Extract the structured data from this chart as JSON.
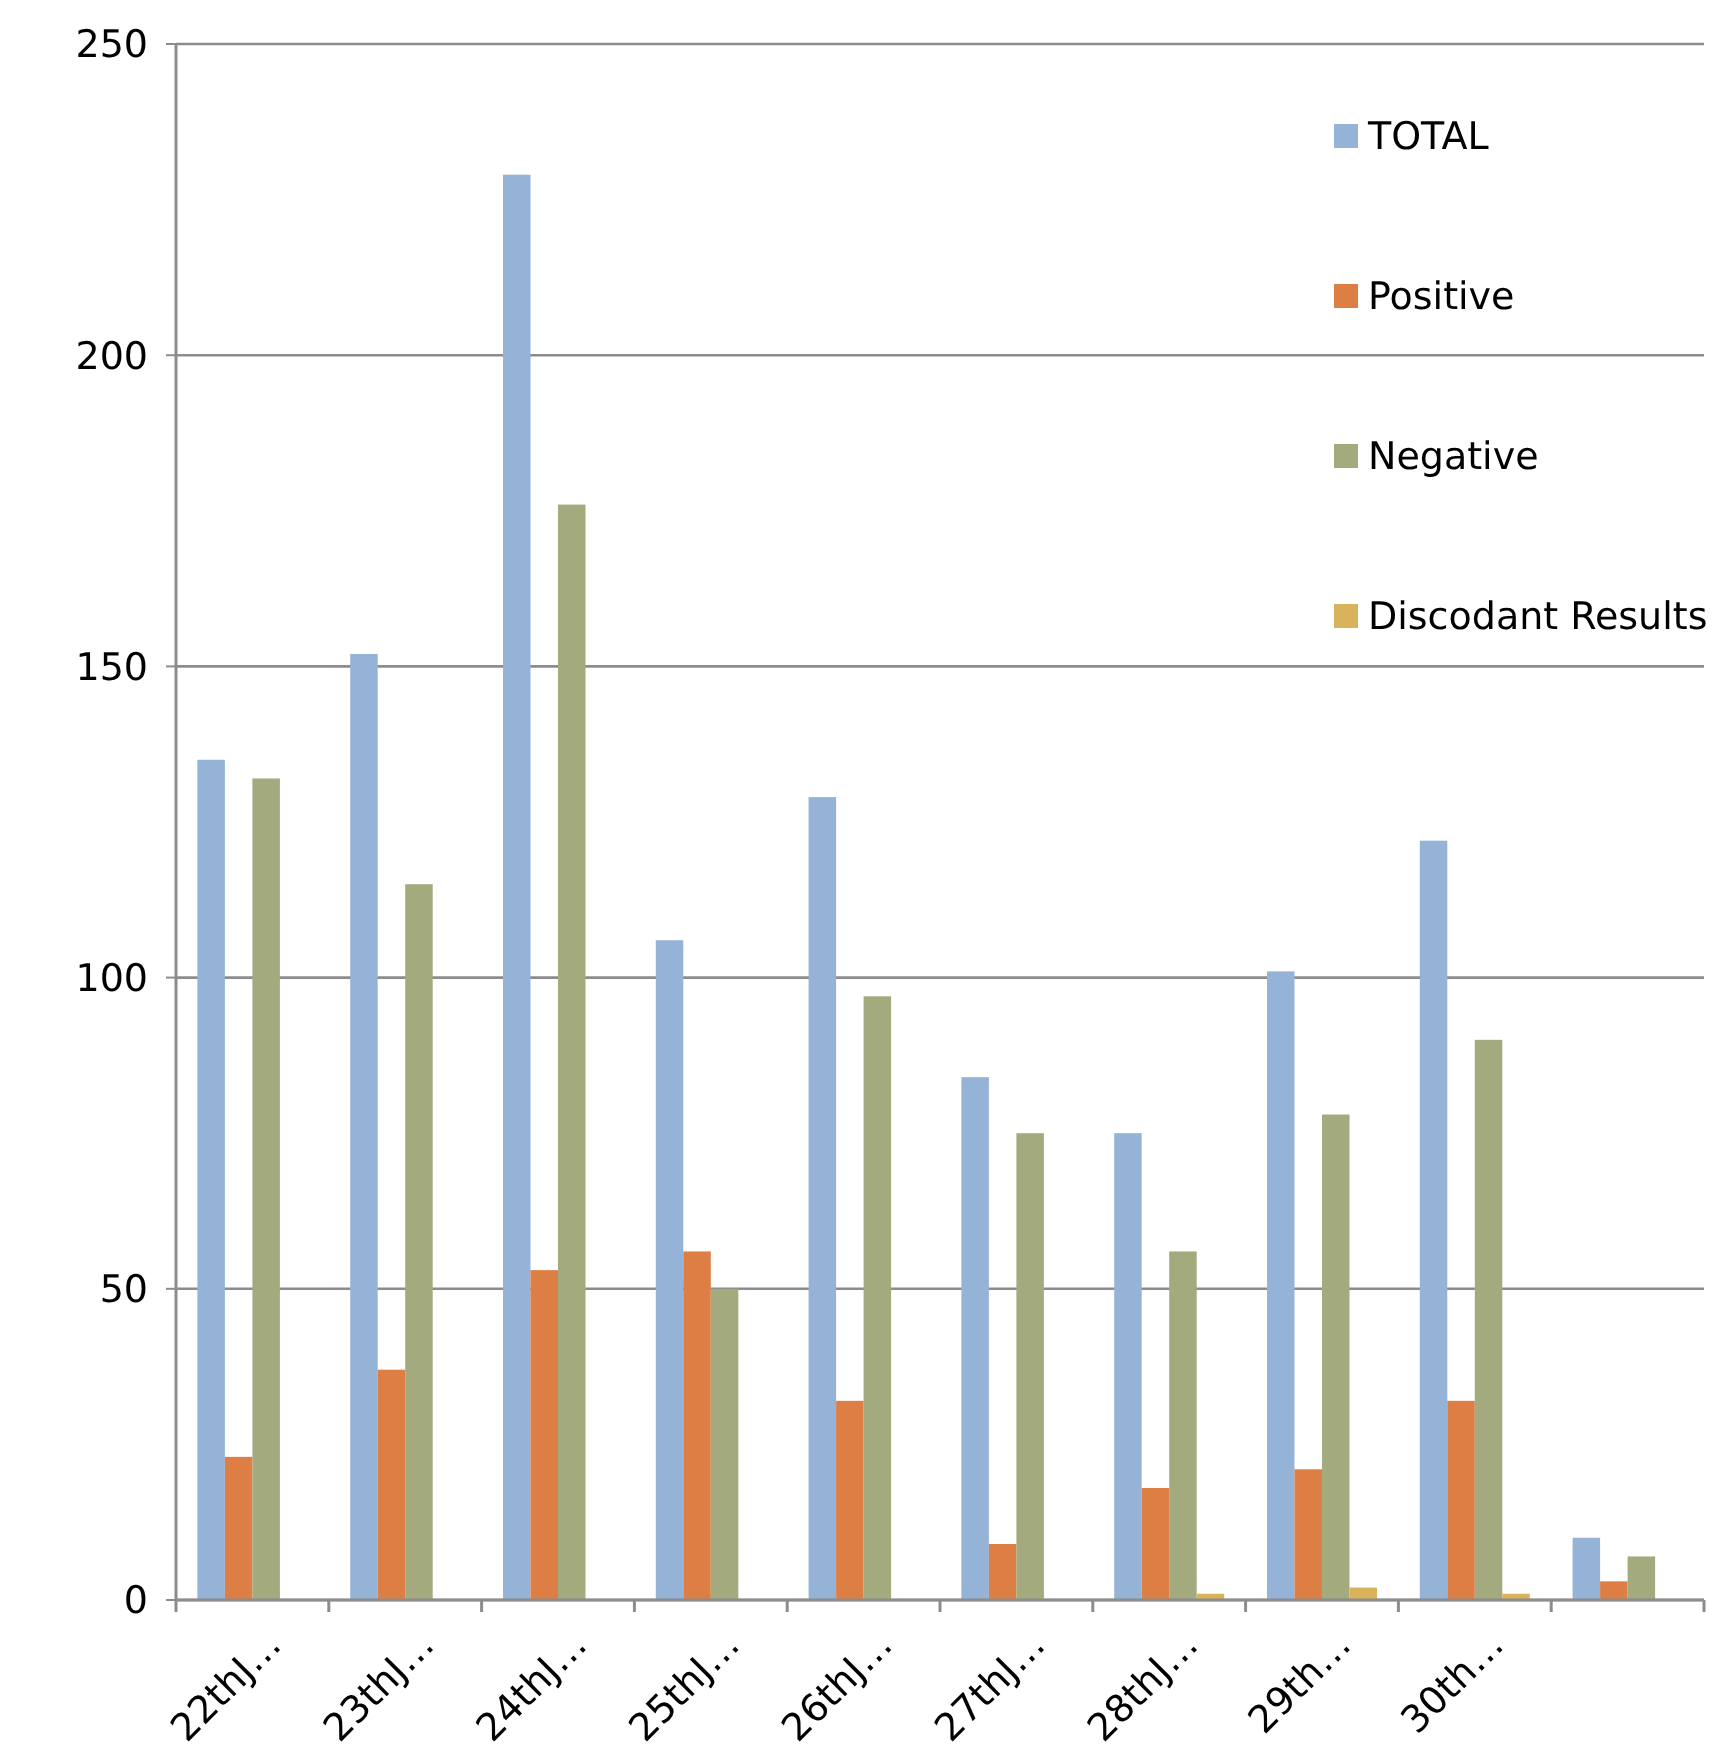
{
  "chart_data": {
    "type": "bar",
    "categories": [
      "22thJ…",
      "23thJ…",
      "24thJ…",
      "25thJ…",
      "26thJ…",
      "27thJ…",
      "28thJ…",
      "29th…",
      "30th…",
      null
    ],
    "series": [
      {
        "name": "TOTAL",
        "color": "#95b3d7",
        "values": [
          135,
          152,
          229,
          106,
          129,
          84,
          75,
          101,
          122,
          10
        ]
      },
      {
        "name": "Positive",
        "color": "#dd7e45",
        "values": [
          23,
          37,
          53,
          56,
          32,
          9,
          18,
          21,
          32,
          3
        ]
      },
      {
        "name": "Negative",
        "color": "#a3ab7e",
        "values": [
          132,
          115,
          176,
          50,
          97,
          75,
          56,
          78,
          90,
          7
        ]
      },
      {
        "name": "Discodant Results",
        "color": "#d9b25c",
        "values": [
          0,
          0,
          0,
          0,
          0,
          0,
          1,
          2,
          1,
          0
        ]
      }
    ],
    "ylim": [
      0,
      250
    ],
    "yticks": [
      0,
      50,
      100,
      150,
      200,
      250
    ],
    "grid": "y",
    "legend": "top right"
  }
}
